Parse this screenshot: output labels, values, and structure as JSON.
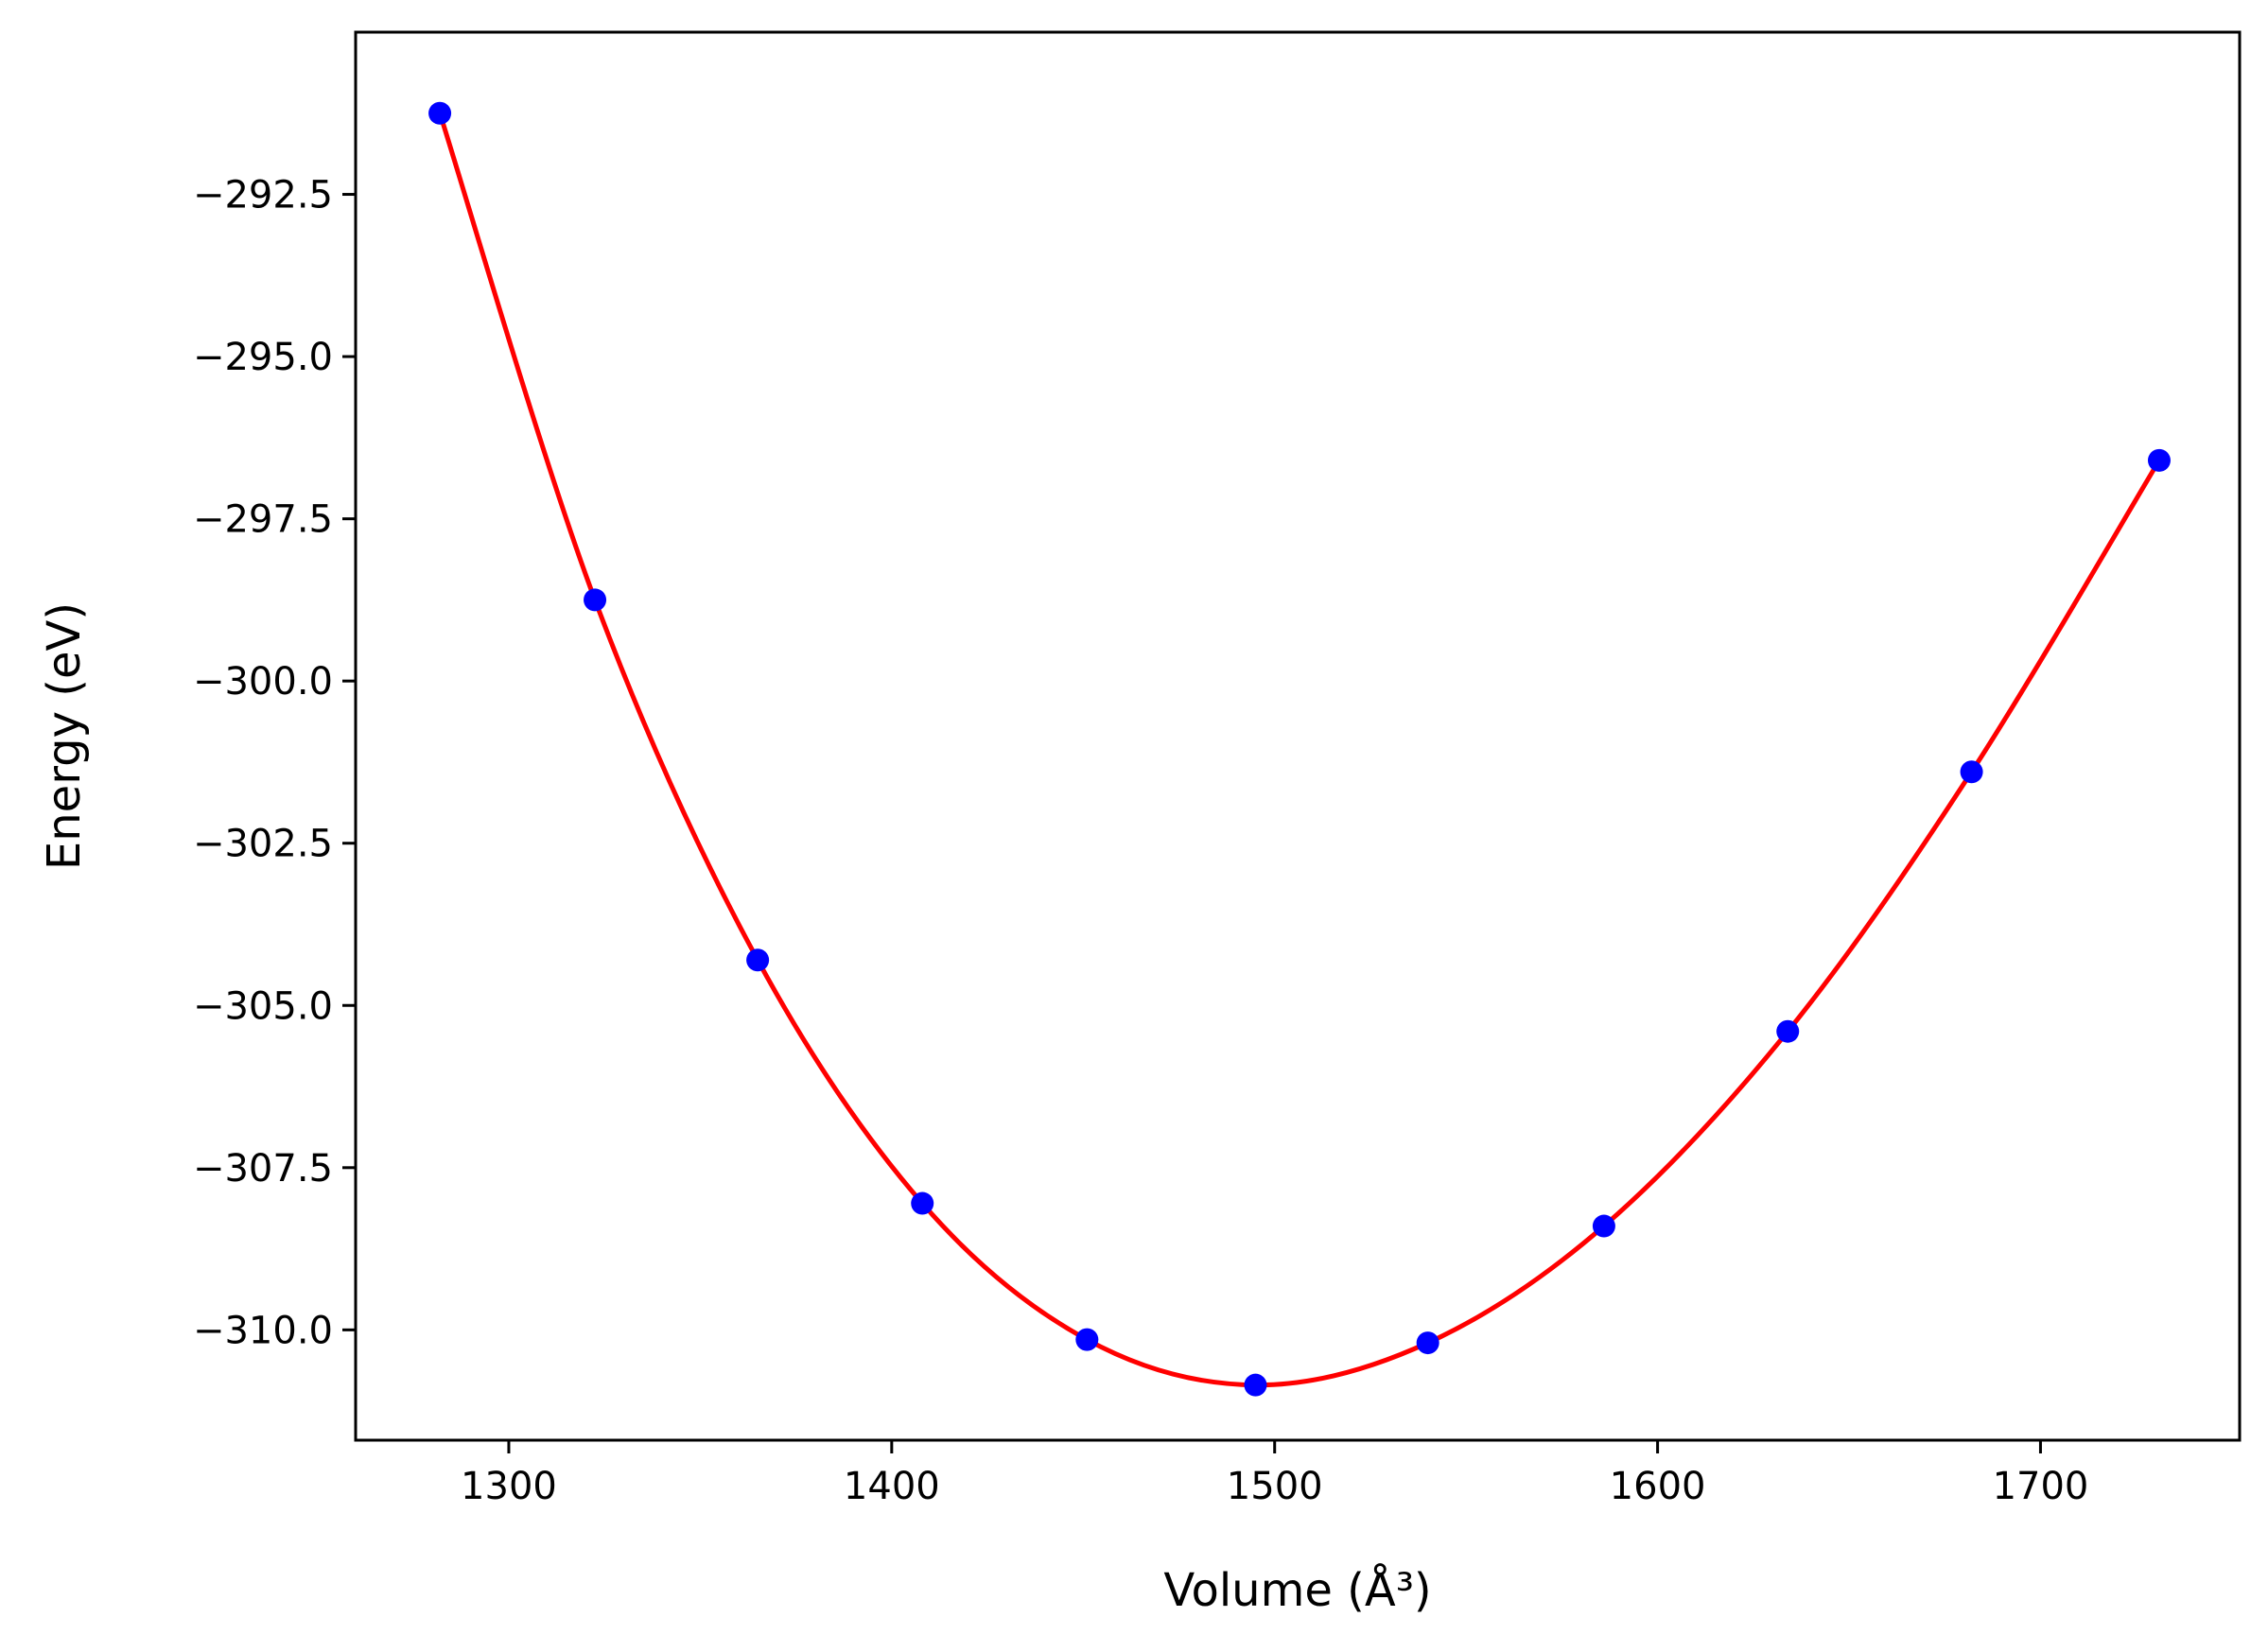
{
  "chart_data": {
    "type": "scatter",
    "title": "",
    "xlabel": "Volume (Å³)",
    "ylabel": "Energy (eV)",
    "xlim": [
      1260,
      1752
    ],
    "ylim": [
      -311.7,
      -290.0
    ],
    "x_ticks": [
      1300,
      1400,
      1500,
      1600,
      1700
    ],
    "x_tick_labels": [
      "1300",
      "1400",
      "1500",
      "1600",
      "1700"
    ],
    "y_ticks": [
      -292.5,
      -295.0,
      -297.5,
      -300.0,
      -302.5,
      -305.0,
      -307.5,
      -310.0
    ],
    "y_tick_labels": [
      "−292.5",
      "−295.0",
      "−297.5",
      "−300.0",
      "−302.5",
      "−305.0",
      "−307.5",
      "−310.0"
    ],
    "grid": false,
    "legend": "none",
    "series": [
      {
        "kind": "points",
        "color": "#0000ff",
        "x": [
          1282,
          1322.5,
          1365,
          1408,
          1451,
          1495,
          1540,
          1586,
          1634,
          1682,
          1731
        ],
        "y": [
          -291.25,
          -298.75,
          -304.3,
          -308.05,
          -310.15,
          -310.85,
          -310.2,
          -308.4,
          -305.4,
          -301.4,
          -296.6
        ]
      },
      {
        "kind": "fit-line",
        "color": "#ff0000",
        "x": [
          1282,
          1322.5,
          1365,
          1408,
          1451,
          1495,
          1540,
          1586,
          1634,
          1682,
          1731
        ],
        "y": [
          -291.25,
          -298.75,
          -304.3,
          -308.05,
          -310.15,
          -310.85,
          -310.2,
          -308.4,
          -305.4,
          -301.4,
          -296.6
        ]
      }
    ]
  }
}
